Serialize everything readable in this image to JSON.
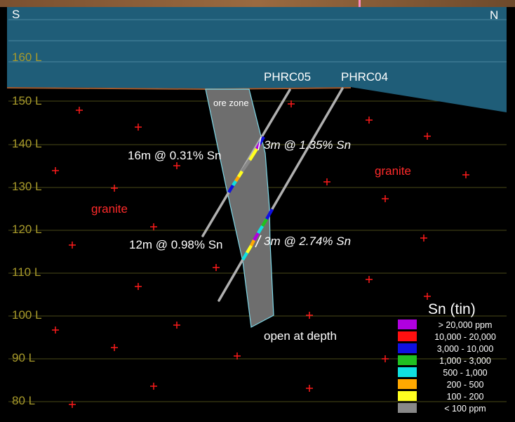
{
  "section": {
    "south_label": "S",
    "north_label": "N",
    "levels": [
      "160 L",
      "150 L",
      "140 L",
      "130 L",
      "120 L",
      "110 L",
      "100 L",
      "90 L",
      "80 L"
    ],
    "holes": [
      {
        "name": "PHRC05",
        "intercepts": [
          {
            "label": "16m @ 0.31% Sn",
            "italic": false
          },
          {
            "label": "3m @ 1.35% Sn",
            "italic": true
          }
        ]
      },
      {
        "name": "PHRC04",
        "intercepts": [
          {
            "label": "12m @ 0.98% Sn",
            "italic": false
          },
          {
            "label": "3m @ 2.74% Sn",
            "italic": true
          }
        ]
      }
    ],
    "ore_zone_label": "ore zone",
    "granite_label": "granite",
    "depth_note": "open at depth"
  },
  "legend": {
    "title": "Sn (tin)",
    "items": [
      {
        "label": "> 20,000 ppm",
        "color": "#b000e0"
      },
      {
        "label": "10,000 - 20,000",
        "color": "#ff1010"
      },
      {
        "label": "3,000 - 10,000",
        "color": "#1010e0"
      },
      {
        "label": "1,000 - 3,000",
        "color": "#20c020"
      },
      {
        "label": "500 - 1,000",
        "color": "#10e0e0"
      },
      {
        "label": "200 - 500",
        "color": "#ffa800"
      },
      {
        "label": "100 - 200",
        "color": "#ffff20"
      },
      {
        "label": "< 100 ppm",
        "color": "#888888"
      }
    ]
  },
  "colors": {
    "sky": "#1f5d78",
    "surface_ground": "#8a5a35",
    "background": "#000000",
    "ore_zone_fill": "#6e6e6e",
    "ore_zone_outline": "#7fd8e8",
    "drill_trace": "#b0b0b0",
    "level_line": "#4a4a18",
    "granite_cross": "#ff1a1a"
  }
}
